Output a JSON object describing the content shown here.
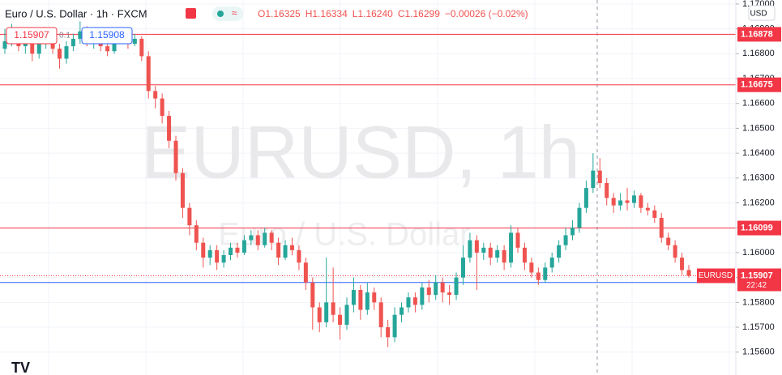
{
  "chart_data": {
    "type": "candlestick",
    "title": "Euro / U.S. Dollar · 1h · FXCM",
    "legend_values": [
      "O1.16325",
      "H1.16334",
      "L1.16240",
      "C1.16299",
      "−0.00026 (−0.02%)"
    ],
    "watermark": "EURUSD, 1h",
    "watermark_subtitle": "Euro / U.S. Dollar",
    "currency": "USD",
    "trade": {
      "sell": "1.15907",
      "spread": "0.1",
      "buy": "1.15908"
    },
    "up_color": "#26a69a",
    "down_color": "#ef5350",
    "grid": true,
    "ylim": [
      1.15508,
      1.17016
    ],
    "yticks": [
      {
        "value": 1.17,
        "label": "1.17000"
      },
      {
        "value": 1.169,
        "label": "1.16900"
      },
      {
        "value": 1.168,
        "label": "1.16800"
      },
      {
        "value": 1.167,
        "label": "1.16700"
      },
      {
        "value": 1.166,
        "label": "1.16600"
      },
      {
        "value": 1.165,
        "label": "1.16500"
      },
      {
        "value": 1.164,
        "label": "1.16400"
      },
      {
        "value": 1.163,
        "label": "1.16300"
      },
      {
        "value": 1.162,
        "label": "1.16200"
      },
      {
        "value": 1.161,
        "label": "1.16100"
      },
      {
        "value": 1.16,
        "label": "1.16000"
      },
      {
        "value": 1.159,
        "label": "1.15900"
      },
      {
        "value": 1.158,
        "label": "1.15800"
      },
      {
        "value": 1.157,
        "label": "1.15700"
      },
      {
        "value": 1.156,
        "label": "1.15600"
      }
    ],
    "levels": [
      {
        "value": 1.16878,
        "label": "1.16878",
        "color": "#f23645"
      },
      {
        "value": 1.16675,
        "label": "1.16675",
        "color": "#f23645"
      },
      {
        "value": 1.16099,
        "label": "1.16099",
        "color": "#f23645"
      },
      {
        "value": 1.1588,
        "label": "1.15880",
        "color": "#2962ff"
      }
    ],
    "last_price": {
      "value": 1.15907,
      "label": "1.15907",
      "name": "EURUSD",
      "countdown": "22:42",
      "color": "#f23645"
    },
    "ohlc": [
      [
        1.1682,
        1.169,
        1.168,
        1.1685
      ],
      [
        1.1685,
        1.1692,
        1.1683,
        1.1688
      ],
      [
        1.1688,
        1.169,
        1.1681,
        1.1683
      ],
      [
        1.1683,
        1.1689,
        1.168,
        1.1686
      ],
      [
        1.1686,
        1.1688,
        1.1677,
        1.168
      ],
      [
        1.168,
        1.1687,
        1.1678,
        1.1684
      ],
      [
        1.1684,
        1.169,
        1.1682,
        1.1687
      ],
      [
        1.1687,
        1.1689,
        1.168,
        1.1682
      ],
      [
        1.1682,
        1.1684,
        1.1674,
        1.1678
      ],
      [
        1.1678,
        1.1685,
        1.1676,
        1.1683
      ],
      [
        1.1683,
        1.1688,
        1.1681,
        1.1686
      ],
      [
        1.1686,
        1.1693,
        1.1684,
        1.1689
      ],
      [
        1.1689,
        1.1691,
        1.1683,
        1.1685
      ],
      [
        1.1685,
        1.1689,
        1.1682,
        1.1687
      ],
      [
        1.1687,
        1.1688,
        1.1681,
        1.1683
      ],
      [
        1.1683,
        1.1685,
        1.1679,
        1.1681
      ],
      [
        1.1681,
        1.1688,
        1.168,
        1.1686
      ],
      [
        1.1686,
        1.169,
        1.1684,
        1.1688
      ],
      [
        1.1688,
        1.1689,
        1.1682,
        1.1684
      ],
      [
        1.1684,
        1.1688,
        1.1683,
        1.1686
      ],
      [
        1.1686,
        1.1687,
        1.1677,
        1.1679
      ],
      [
        1.1679,
        1.1681,
        1.1662,
        1.1665
      ],
      [
        1.1665,
        1.1667,
        1.1658,
        1.1662
      ],
      [
        1.1662,
        1.1664,
        1.1652,
        1.1655
      ],
      [
        1.1655,
        1.1657,
        1.1642,
        1.1645
      ],
      [
        1.1645,
        1.1647,
        1.1629,
        1.1632
      ],
      [
        1.1632,
        1.1634,
        1.1614,
        1.1618
      ],
      [
        1.1618,
        1.162,
        1.1607,
        1.1611
      ],
      [
        1.1611,
        1.1613,
        1.1601,
        1.1604
      ],
      [
        1.1604,
        1.1606,
        1.1594,
        1.1598
      ],
      [
        1.1598,
        1.1603,
        1.1595,
        1.1601
      ],
      [
        1.1601,
        1.1603,
        1.1593,
        1.1596
      ],
      [
        1.1596,
        1.1601,
        1.1594,
        1.1599
      ],
      [
        1.1599,
        1.1604,
        1.1597,
        1.1602
      ],
      [
        1.1602,
        1.1604,
        1.1598,
        1.16
      ],
      [
        1.16,
        1.1607,
        1.1599,
        1.1605
      ],
      [
        1.1605,
        1.1609,
        1.1603,
        1.1607
      ],
      [
        1.1607,
        1.1609,
        1.1601,
        1.1603
      ],
      [
        1.1603,
        1.161,
        1.1602,
        1.1608
      ],
      [
        1.1608,
        1.1609,
        1.1601,
        1.1604
      ],
      [
        1.1604,
        1.1606,
        1.1595,
        1.1598
      ],
      [
        1.1598,
        1.1605,
        1.1597,
        1.1603
      ],
      [
        1.1603,
        1.1606,
        1.1599,
        1.1601
      ],
      [
        1.1601,
        1.1603,
        1.1593,
        1.1596
      ],
      [
        1.1596,
        1.1598,
        1.1585,
        1.1588
      ],
      [
        1.1588,
        1.159,
        1.1569,
        1.1578
      ],
      [
        1.1578,
        1.158,
        1.1568,
        1.1572
      ],
      [
        1.1572,
        1.1598,
        1.157,
        1.158
      ],
      [
        1.158,
        1.1594,
        1.1572,
        1.1575
      ],
      [
        1.1575,
        1.1578,
        1.1565,
        1.1571
      ],
      [
        1.1571,
        1.1582,
        1.1569,
        1.1579
      ],
      [
        1.1579,
        1.159,
        1.1576,
        1.1585
      ],
      [
        1.1585,
        1.1587,
        1.1573,
        1.1577
      ],
      [
        1.1577,
        1.1588,
        1.1575,
        1.1584
      ],
      [
        1.1584,
        1.1586,
        1.1577,
        1.158
      ],
      [
        1.158,
        1.1582,
        1.1566,
        1.157
      ],
      [
        1.157,
        1.1573,
        1.1562,
        1.1566
      ],
      [
        1.1566,
        1.1578,
        1.1564,
        1.1575
      ],
      [
        1.1575,
        1.158,
        1.1572,
        1.1578
      ],
      [
        1.1578,
        1.1584,
        1.1576,
        1.1582
      ],
      [
        1.1582,
        1.1584,
        1.1576,
        1.1579
      ],
      [
        1.1579,
        1.1588,
        1.1577,
        1.1586
      ],
      [
        1.1586,
        1.1589,
        1.158,
        1.1583
      ],
      [
        1.1583,
        1.1591,
        1.1581,
        1.1588
      ],
      [
        1.1588,
        1.159,
        1.158,
        1.1584
      ],
      [
        1.1584,
        1.1587,
        1.1579,
        1.1583
      ],
      [
        1.1583,
        1.1592,
        1.1581,
        1.159
      ],
      [
        1.159,
        1.1603,
        1.1587,
        1.1598
      ],
      [
        1.1598,
        1.1608,
        1.1596,
        1.1605
      ],
      [
        1.1605,
        1.1607,
        1.1585,
        1.16
      ],
      [
        1.16,
        1.1604,
        1.1597,
        1.1602
      ],
      [
        1.1602,
        1.1604,
        1.1595,
        1.1598
      ],
      [
        1.1598,
        1.1603,
        1.1596,
        1.1601
      ],
      [
        1.1601,
        1.1603,
        1.1593,
        1.1596
      ],
      [
        1.1596,
        1.1611,
        1.1594,
        1.1608
      ],
      [
        1.1608,
        1.161,
        1.16,
        1.1602
      ],
      [
        1.1602,
        1.1604,
        1.1593,
        1.1596
      ],
      [
        1.1596,
        1.1598,
        1.159,
        1.1592
      ],
      [
        1.1592,
        1.1594,
        1.1587,
        1.1589
      ],
      [
        1.1589,
        1.1596,
        1.1588,
        1.1594
      ],
      [
        1.1594,
        1.16,
        1.1592,
        1.1598
      ],
      [
        1.1598,
        1.1605,
        1.1596,
        1.1603
      ],
      [
        1.1603,
        1.161,
        1.1601,
        1.1607
      ],
      [
        1.1607,
        1.1613,
        1.1605,
        1.161
      ],
      [
        1.161,
        1.162,
        1.1608,
        1.1618
      ],
      [
        1.1618,
        1.1629,
        1.1616,
        1.1626
      ],
      [
        1.1626,
        1.164,
        1.1624,
        1.1633
      ],
      [
        1.1633,
        1.1638,
        1.1626,
        1.1628
      ],
      [
        1.1628,
        1.163,
        1.1619,
        1.1622
      ],
      [
        1.1622,
        1.1624,
        1.1616,
        1.1619
      ],
      [
        1.1619,
        1.1624,
        1.1617,
        1.1621
      ],
      [
        1.1621,
        1.1626,
        1.1617,
        1.162
      ],
      [
        1.162,
        1.1625,
        1.1618,
        1.1623
      ],
      [
        1.1623,
        1.1624,
        1.1616,
        1.1618
      ],
      [
        1.1618,
        1.162,
        1.1615,
        1.1617
      ],
      [
        1.1617,
        1.1619,
        1.1612,
        1.1614
      ],
      [
        1.1614,
        1.1616,
        1.1604,
        1.1606
      ],
      [
        1.1606,
        1.1608,
        1.1601,
        1.1603
      ],
      [
        1.1603,
        1.1605,
        1.1596,
        1.1598
      ],
      [
        1.1598,
        1.16,
        1.1591,
        1.1593
      ],
      [
        1.1593,
        1.1595,
        1.159,
        1.15907
      ]
    ]
  }
}
